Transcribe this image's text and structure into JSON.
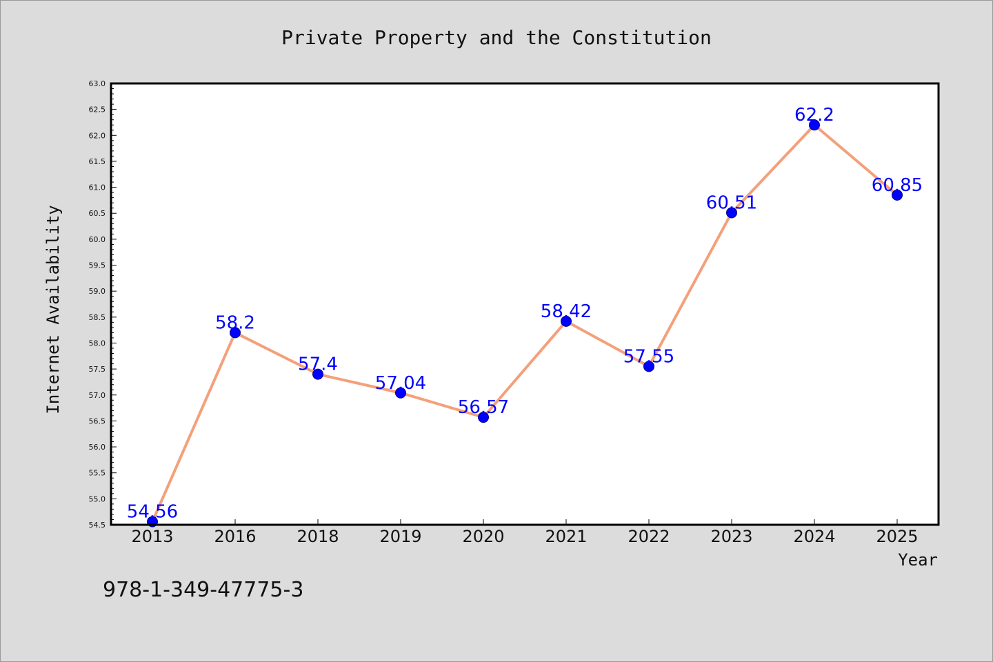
{
  "chart_data": {
    "type": "line",
    "title": "Private Property and the Constitution",
    "xlabel": "Year",
    "ylabel": "Internet Availability",
    "categories": [
      "2013",
      "2016",
      "2018",
      "2019",
      "2020",
      "2021",
      "2022",
      "2023",
      "2024",
      "2025"
    ],
    "series": [
      {
        "values": [
          54.56,
          58.2,
          57.4,
          57.04,
          56.57,
          58.42,
          57.55,
          60.51,
          62.2,
          60.85
        ],
        "labels": [
          "54.56",
          "58.2",
          "57.4",
          "57.04",
          "56.57",
          "58.42",
          "57.55",
          "60.51",
          "62.2",
          "60.85"
        ]
      }
    ],
    "ylim": [
      54.5,
      63.0
    ],
    "yticks": [
      "54.5",
      "55.0",
      "55.5",
      "56.0",
      "56.5",
      "57.0",
      "57.5",
      "58.0",
      "58.5",
      "59.0",
      "59.5",
      "60.0",
      "60.5",
      "61.0",
      "61.5",
      "62.0",
      "62.5",
      "63.0"
    ],
    "grid": false,
    "line_color": "#f4a07a",
    "marker_color": "#0000ff",
    "label_color": "#0000ff",
    "plot_background": "#ffffff",
    "figure_background": "#dcdcdc"
  },
  "footnote": "978-1-349-47775-3"
}
